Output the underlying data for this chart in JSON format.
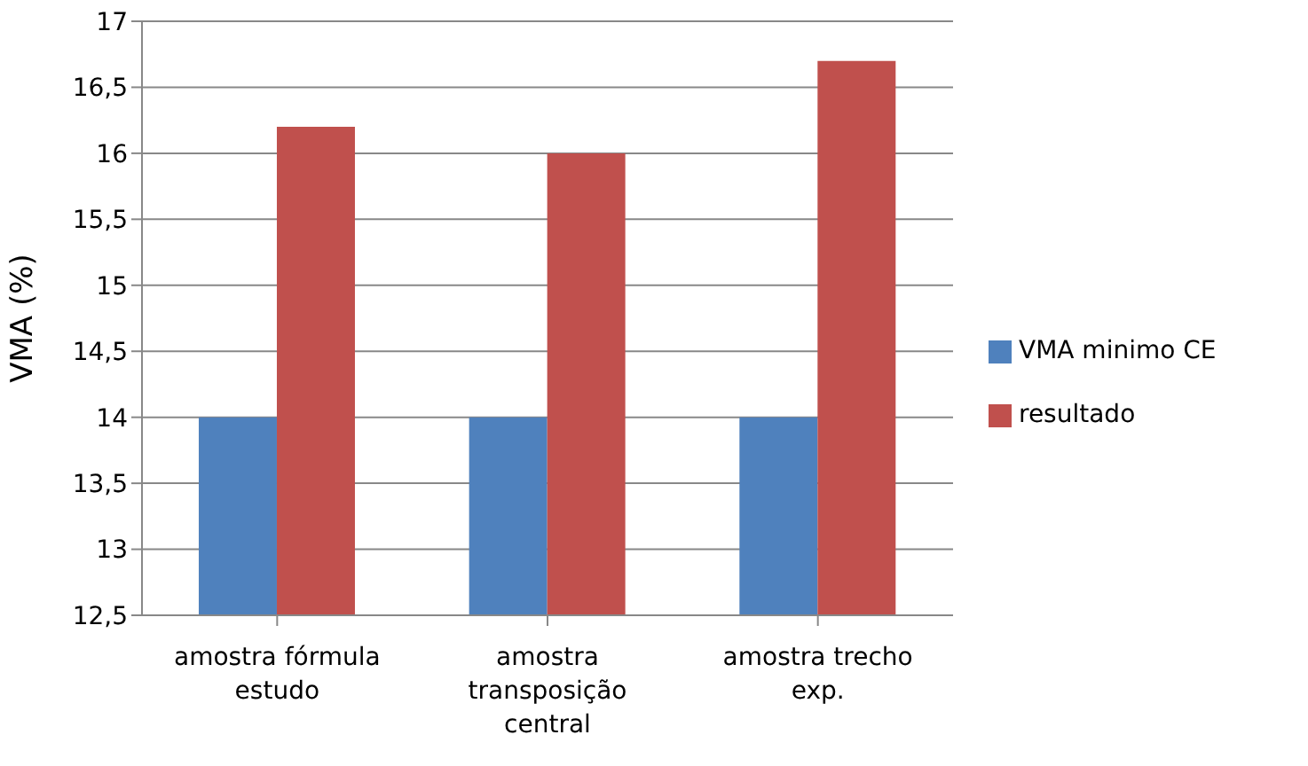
{
  "chart_data": {
    "type": "bar",
    "ylabel": "VMA (%)",
    "categories": [
      "amostra fórmula estudo",
      "amostra transposição central",
      "amostra trecho exp."
    ],
    "series": [
      {
        "name": "VMA minimo CE",
        "color": "#4f81bd",
        "values": [
          14,
          14,
          14
        ]
      },
      {
        "name": "resultado",
        "color": "#c0504d",
        "values": [
          16.2,
          16,
          16.7
        ]
      }
    ],
    "ylim": [
      12.5,
      17
    ],
    "yticks": [
      {
        "value": 12.5,
        "label": "12,5"
      },
      {
        "value": 13,
        "label": "13"
      },
      {
        "value": 13.5,
        "label": "13,5"
      },
      {
        "value": 14,
        "label": "14"
      },
      {
        "value": 14.5,
        "label": "14,5"
      },
      {
        "value": 15,
        "label": "15"
      },
      {
        "value": 15.5,
        "label": "15,5"
      },
      {
        "value": 16,
        "label": "16"
      },
      {
        "value": 16.5,
        "label": "16,5"
      },
      {
        "value": 17,
        "label": "17"
      }
    ],
    "grid": "y",
    "legend": "right"
  }
}
